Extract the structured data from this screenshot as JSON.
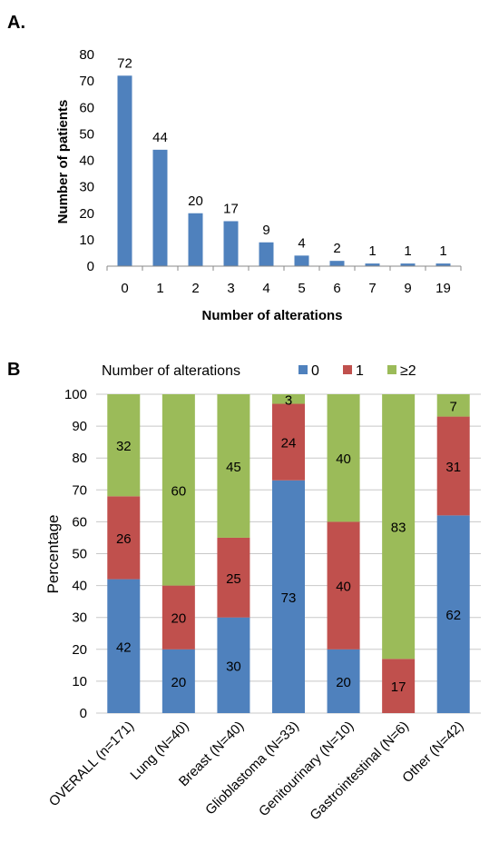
{
  "chart_data": [
    {
      "type": "bar",
      "panel": "A.",
      "categories": [
        "0",
        "1",
        "2",
        "3",
        "4",
        "5",
        "6",
        "7",
        "9",
        "19"
      ],
      "values": [
        72,
        44,
        20,
        17,
        9,
        4,
        2,
        1,
        1,
        1
      ],
      "data_labels": [
        "72",
        "44",
        "20",
        "17",
        "9",
        "4",
        "2",
        "1",
        "1",
        "1"
      ],
      "xlabel": "Number of alterations",
      "ylabel": "Number of patients",
      "ylim": [
        0,
        80
      ],
      "yticks": [
        "0",
        "10",
        "20",
        "30",
        "40",
        "50",
        "60",
        "70",
        "80"
      ],
      "color": "#4f81bd",
      "grid": false
    },
    {
      "type": "bar",
      "stacked": true,
      "panel": "B",
      "categories": [
        "OVERALL (n=171)",
        "Lung (N=40)",
        "Breast (N=40)",
        "Glioblastoma (N=33)",
        "Genitourinary (N=10)",
        "Gastrointestinal (N=6)",
        "Other (N=42)"
      ],
      "series": [
        {
          "name": "0",
          "color": "#4f81bd",
          "values": [
            42,
            20,
            30,
            73,
            20,
            0,
            62
          ],
          "labels": [
            "42",
            "20",
            "30",
            "73",
            "20",
            "",
            "62"
          ]
        },
        {
          "name": "1",
          "color": "#c0504d",
          "values": [
            26,
            20,
            25,
            24,
            40,
            17,
            31
          ],
          "labels": [
            "26",
            "20",
            "25",
            "24",
            "40",
            "17",
            "31"
          ]
        },
        {
          "name": "≥2",
          "color": "#9bbb59",
          "values": [
            32,
            60,
            45,
            3,
            40,
            83,
            7
          ],
          "labels": [
            "32",
            "60",
            "45",
            "3",
            "40",
            "83",
            "7"
          ]
        }
      ],
      "legend_title": "Number of alterations",
      "ylabel": "Percentage",
      "ylim": [
        0,
        100
      ],
      "yticks": [
        "0",
        "10",
        "20",
        "30",
        "40",
        "50",
        "60",
        "70",
        "80",
        "90",
        "100"
      ],
      "legend_position": "top",
      "grid": true
    }
  ]
}
